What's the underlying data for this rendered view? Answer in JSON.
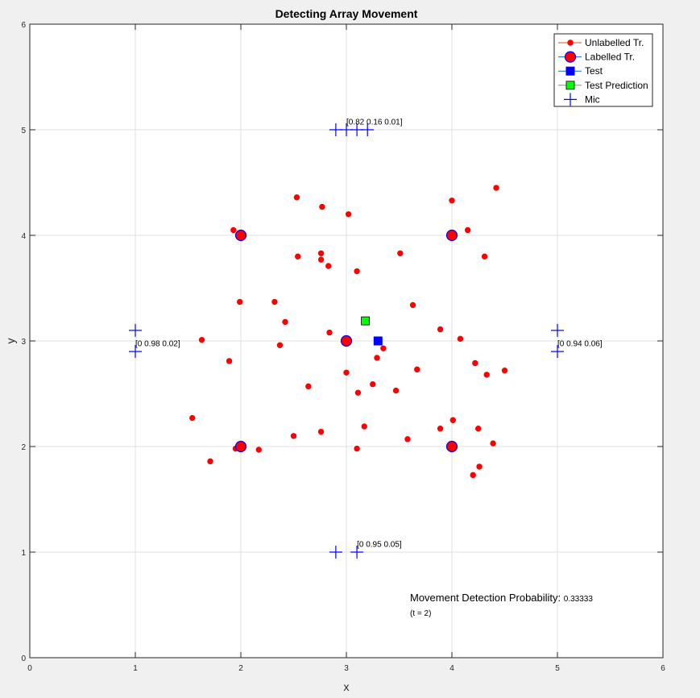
{
  "chart_data": {
    "type": "scatter",
    "title": "Detecting Array Movement",
    "xlabel": "x",
    "ylabel": "y",
    "xlim": [
      0,
      6
    ],
    "ylim": [
      0,
      6
    ],
    "xticks": [
      "0",
      "1",
      "2",
      "3",
      "4",
      "5",
      "6"
    ],
    "yticks": [
      "0",
      "1",
      "2",
      "3",
      "4",
      "5",
      "6"
    ],
    "grid": true,
    "legend_position": "top-right",
    "colors": {
      "unlabelled": "#ff0000",
      "labelled_fill": "#ff0000",
      "labelled_edge": "#0000ff",
      "test": "#0000ff",
      "test_prediction": "#00ff00",
      "mic": "#0000ff"
    },
    "series": [
      {
        "name": "Unlabelled Tr.",
        "marker": "dot",
        "points": [
          [
            2.53,
            4.36
          ],
          [
            3.02,
            4.2
          ],
          [
            2.77,
            4.27
          ],
          [
            4.0,
            4.33
          ],
          [
            4.42,
            4.45
          ],
          [
            1.93,
            4.05
          ],
          [
            4.15,
            4.05
          ],
          [
            2.54,
            3.8
          ],
          [
            2.76,
            3.83
          ],
          [
            2.76,
            3.77
          ],
          [
            2.83,
            3.71
          ],
          [
            3.51,
            3.83
          ],
          [
            4.31,
            3.8
          ],
          [
            3.1,
            3.66
          ],
          [
            1.99,
            3.37
          ],
          [
            2.32,
            3.37
          ],
          [
            3.63,
            3.34
          ],
          [
            2.42,
            3.18
          ],
          [
            2.84,
            3.08
          ],
          [
            3.89,
            3.11
          ],
          [
            4.08,
            3.02
          ],
          [
            1.63,
            3.01
          ],
          [
            2.37,
            2.96
          ],
          [
            3.35,
            2.93
          ],
          [
            1.89,
            2.81
          ],
          [
            3.29,
            2.84
          ],
          [
            4.22,
            2.79
          ],
          [
            3.0,
            2.7
          ],
          [
            3.67,
            2.73
          ],
          [
            4.33,
            2.68
          ],
          [
            4.5,
            2.72
          ],
          [
            2.64,
            2.57
          ],
          [
            3.25,
            2.59
          ],
          [
            3.11,
            2.51
          ],
          [
            3.47,
            2.53
          ],
          [
            1.54,
            2.27
          ],
          [
            4.01,
            2.25
          ],
          [
            3.17,
            2.19
          ],
          [
            3.89,
            2.17
          ],
          [
            4.25,
            2.17
          ],
          [
            2.76,
            2.14
          ],
          [
            2.5,
            2.1
          ],
          [
            3.58,
            2.07
          ],
          [
            4.39,
            2.03
          ],
          [
            1.95,
            1.98
          ],
          [
            2.17,
            1.97
          ],
          [
            3.1,
            1.98
          ],
          [
            1.71,
            1.86
          ],
          [
            4.26,
            1.81
          ],
          [
            4.2,
            1.73
          ]
        ]
      },
      {
        "name": "Labelled Tr.",
        "marker": "circle",
        "points": [
          [
            2,
            4
          ],
          [
            4,
            4
          ],
          [
            3,
            3
          ],
          [
            2,
            2
          ],
          [
            4,
            2
          ]
        ]
      },
      {
        "name": "Test",
        "marker": "square",
        "points": [
          [
            3.3,
            3.0
          ]
        ]
      },
      {
        "name": "Test Prediction",
        "marker": "square",
        "points": [
          [
            3.18,
            3.19
          ]
        ]
      },
      {
        "name": "Mic",
        "marker": "plus",
        "points": [
          [
            2.9,
            5.0
          ],
          [
            3.0,
            5.0
          ],
          [
            3.1,
            5.0
          ],
          [
            3.2,
            5.0
          ],
          [
            1.0,
            3.1
          ],
          [
            1.0,
            2.9
          ],
          [
            5.0,
            3.1
          ],
          [
            5.0,
            2.9
          ],
          [
            2.9,
            1.0
          ],
          [
            3.1,
            1.0
          ]
        ]
      }
    ],
    "annotations": [
      {
        "text": "[0.82 0.16 0.01]",
        "x": 3.0,
        "y": 5.05,
        "style": "small"
      },
      {
        "text": "[0 0.98 0.02]",
        "x": 1.0,
        "y": 2.95,
        "style": "small"
      },
      {
        "text": "[0 0.94 0.06]",
        "x": 5.0,
        "y": 2.95,
        "style": "small"
      },
      {
        "text": "[0 0.95 0.05]",
        "x": 3.1,
        "y": 1.05,
        "style": "small"
      }
    ],
    "probability_label": "Movement Detection Probability",
    "probability_value": "0.33333",
    "time_label": "(t = 2)"
  }
}
